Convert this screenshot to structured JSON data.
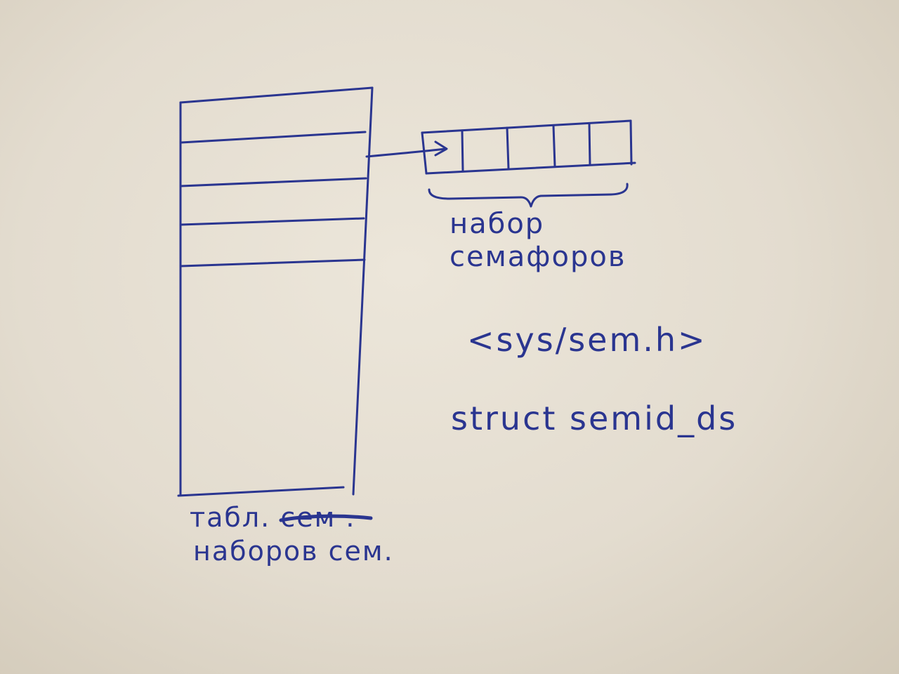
{
  "colors": {
    "ink": "#2a3590",
    "paper": "#e7e1d5"
  },
  "diagram": {
    "semaphore_set_label": {
      "line1": "набор",
      "line2": "семафоров"
    },
    "table_label": {
      "line1_prefix": "табл.",
      "line1_struck": "сем",
      "line1_suffix": ".",
      "line2": "наборов сем."
    },
    "header_file": "<sys/sem.h>",
    "struct_name": "struct semid_ds"
  }
}
